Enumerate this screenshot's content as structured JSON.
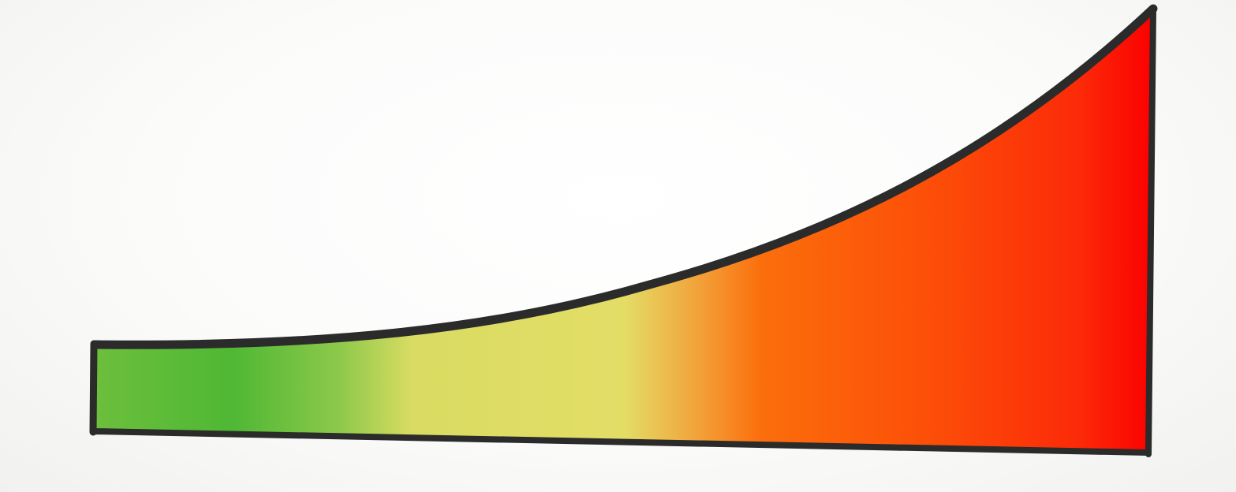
{
  "diagram": {
    "kind": "escalation-wedge",
    "gradient_stops": [
      {
        "offset": 0.0,
        "color": "#6cbf3d"
      },
      {
        "offset": 0.13,
        "color": "#4fb834"
      },
      {
        "offset": 0.23,
        "color": "#8cc84a"
      },
      {
        "offset": 0.3,
        "color": "#d9dc62"
      },
      {
        "offset": 0.5,
        "color": "#e3dd66"
      },
      {
        "offset": 0.57,
        "color": "#f2a23a"
      },
      {
        "offset": 0.63,
        "color": "#fb6e0c"
      },
      {
        "offset": 0.8,
        "color": "#fc4c08"
      },
      {
        "offset": 0.93,
        "color": "#fc2a08"
      },
      {
        "offset": 1.0,
        "color": "#fb0000"
      }
    ],
    "outline_color": "#2b2b2b"
  }
}
